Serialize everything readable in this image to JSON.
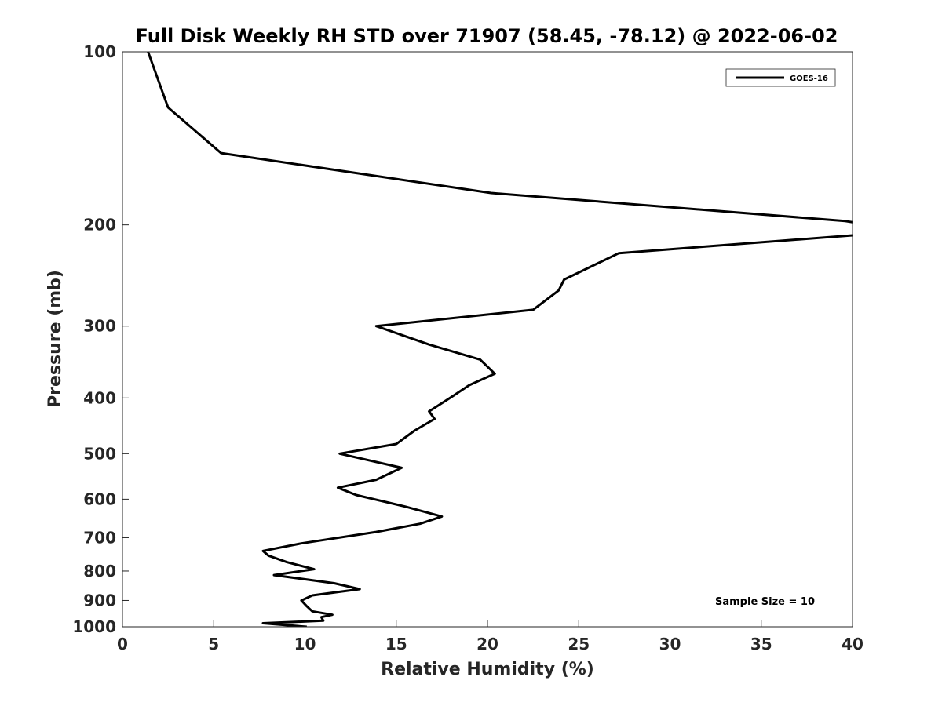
{
  "chart_data": {
    "type": "line",
    "title": "Full Disk Weekly RH STD over 71907 (58.45, -78.12) @ 2022-06-02",
    "xlabel": "Relative Humidity (%)",
    "ylabel": "Pressure (mb)",
    "xlim": [
      0,
      40
    ],
    "ylim": [
      100,
      1000
    ],
    "y_scale": "log",
    "y_reversed": true,
    "grid": false,
    "legend_position": "top-right",
    "x_ticks": [
      0,
      5,
      10,
      15,
      20,
      25,
      30,
      35,
      40
    ],
    "y_ticks": [
      100,
      200,
      300,
      400,
      500,
      600,
      700,
      800,
      900,
      1000
    ],
    "annotation": "Sample Size = 10",
    "series": [
      {
        "name": "GOES-16",
        "color": "#000000",
        "points": [
          [
            1.4,
            100
          ],
          [
            2.5,
            125
          ],
          [
            5.4,
            150
          ],
          [
            20.2,
            176
          ],
          [
            39.6,
            197
          ],
          [
            40.5,
            199
          ],
          [
            40.5,
            208
          ],
          [
            27.2,
            224
          ],
          [
            24.2,
            249
          ],
          [
            23.9,
            260
          ],
          [
            22.5,
            281
          ],
          [
            13.9,
            300
          ],
          [
            16.8,
            323
          ],
          [
            19.6,
            343
          ],
          [
            20.4,
            363
          ],
          [
            19.0,
            380
          ],
          [
            18.0,
            399
          ],
          [
            16.8,
            422
          ],
          [
            17.1,
            435
          ],
          [
            16.0,
            456
          ],
          [
            15.0,
            481
          ],
          [
            11.9,
            500
          ],
          [
            15.3,
            529
          ],
          [
            13.9,
            555
          ],
          [
            11.8,
            573
          ],
          [
            12.8,
            590
          ],
          [
            15.5,
            618
          ],
          [
            17.5,
            643
          ],
          [
            16.3,
            662
          ],
          [
            13.9,
            684
          ],
          [
            9.8,
            716
          ],
          [
            7.7,
            738
          ],
          [
            8.0,
            752
          ],
          [
            9.0,
            772
          ],
          [
            10.5,
            794
          ],
          [
            8.3,
            813
          ],
          [
            11.6,
            840
          ],
          [
            13.0,
            860
          ],
          [
            10.4,
            882
          ],
          [
            9.8,
            900
          ],
          [
            10.1,
            921
          ],
          [
            10.4,
            940
          ],
          [
            11.5,
            953
          ],
          [
            10.9,
            962
          ],
          [
            11.0,
            976
          ],
          [
            7.7,
            986
          ],
          [
            10.1,
            1000
          ]
        ]
      }
    ]
  }
}
